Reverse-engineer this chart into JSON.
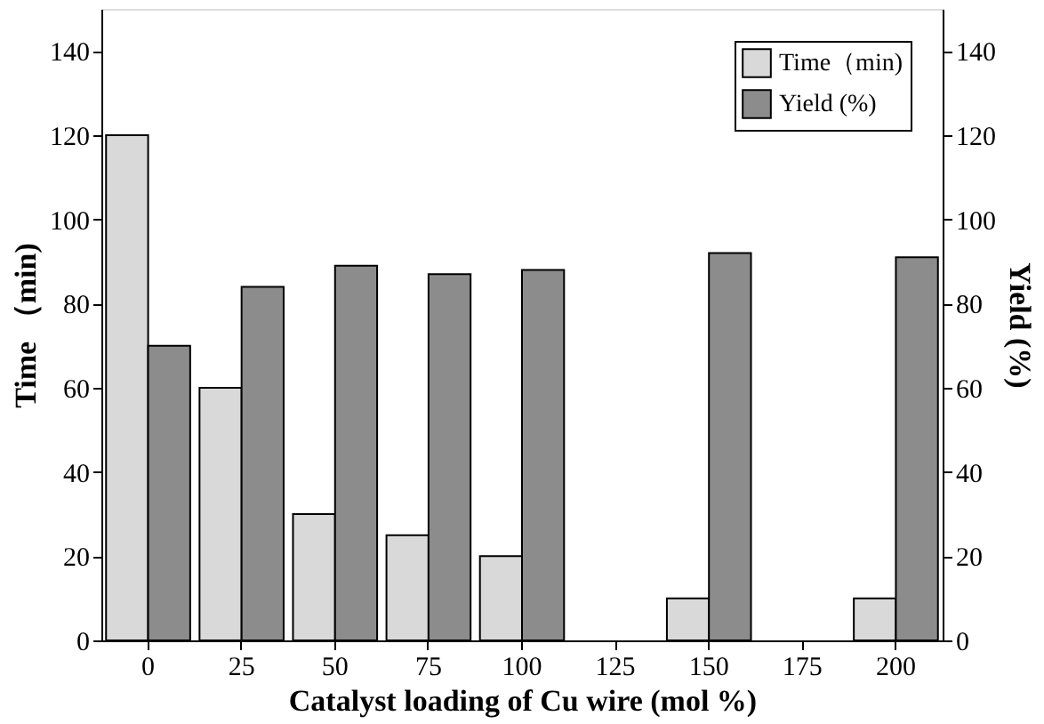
{
  "chart_data": {
    "type": "bar",
    "xlabel": "Catalyst loading of Cu wire (mol %)",
    "ylabel": "Time （min)",
    "y2label": "Yield (%)",
    "categories": [
      "0",
      "25",
      "50",
      "75",
      "100",
      "125",
      "150",
      "175",
      "200"
    ],
    "series": [
      {
        "name": "Time（min)",
        "color": "#d9d9d9",
        "axis": "y",
        "values": [
          120,
          60,
          30,
          25,
          20,
          null,
          10,
          null,
          10
        ]
      },
      {
        "name": "Yield (%)",
        "color": "#8c8c8c",
        "axis": "y2",
        "values": [
          70,
          84,
          89,
          87,
          88,
          null,
          92,
          null,
          91
        ]
      }
    ],
    "ylim": [
      0,
      150
    ],
    "yticks": [
      0,
      20,
      40,
      60,
      80,
      100,
      120,
      140
    ],
    "y2lim": [
      0,
      150
    ],
    "y2ticks": [
      0,
      20,
      40,
      60,
      80,
      100,
      120,
      140
    ],
    "grid": false,
    "legend": "top right"
  }
}
